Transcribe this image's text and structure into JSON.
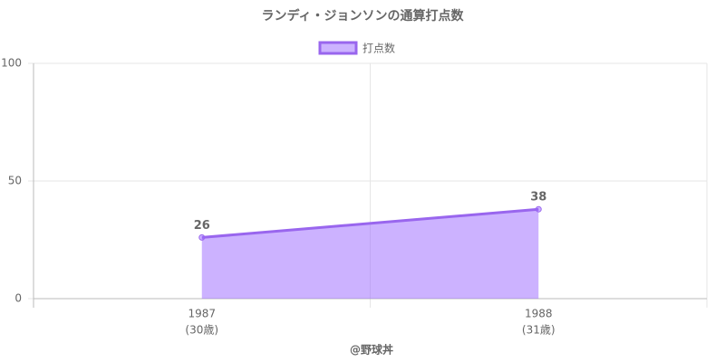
{
  "chart_data": {
    "type": "line",
    "title": "ランディ・ジョンソンの通算打点数",
    "categories": [
      "1987",
      "1988"
    ],
    "category_sublabels": [
      "(30歳)",
      "(31歳)"
    ],
    "x_label": "@野球丼",
    "series": [
      {
        "name": "打点数",
        "color": "#9966ee",
        "fill": "rgba(153,102,255,0.5)",
        "values": [
          26,
          38
        ]
      }
    ],
    "ylim": [
      0,
      100
    ],
    "yticks": [
      0,
      50,
      100
    ],
    "grid": true,
    "legend": "top"
  }
}
